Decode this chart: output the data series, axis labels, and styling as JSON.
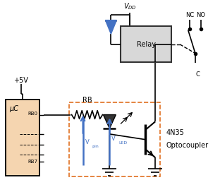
{
  "fig_width": 3.12,
  "fig_height": 2.72,
  "dpi": 100,
  "bg_color": "#ffffff",
  "uc_label": "μC",
  "uc_rb0": "RB0",
  "uc_rb7": "RB7",
  "relay_label": "Relay",
  "rb_label": "RB",
  "vpin_label": "V",
  "vpin_sub": "pin",
  "vled_label": "V",
  "vled_sub": "LED",
  "label_4n35": "4N35",
  "label_optocoupler": "Optocoupler",
  "label_nc": "NC",
  "label_no": "NO",
  "label_c": "C",
  "label_5v": "+5V",
  "label_vdd": "$V_{DD}$",
  "line_color": "#000000",
  "blue_color": "#4472c4",
  "orange_color": "#e07020",
  "relay_face": "#d8d8d8",
  "uc_face": "#f5d5b0"
}
